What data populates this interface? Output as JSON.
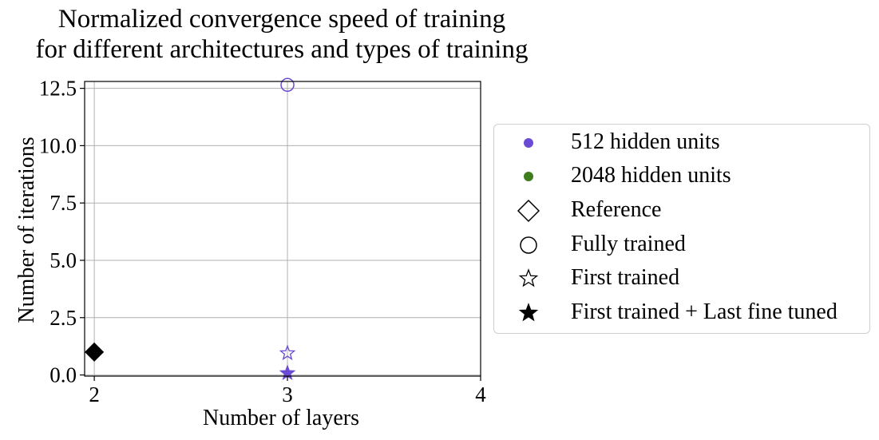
{
  "colors": {
    "series_512": "#6a4bd3",
    "series_2048": "#3d7d1d",
    "reference": "#000000",
    "grid": "#b0b0b0"
  },
  "chart_data": {
    "type": "scatter",
    "title_lines": [
      "Normalized convergence speed of training",
      "for different architectures and types of training"
    ],
    "xlabel": "Number of layers",
    "ylabel": "Number of iterations",
    "xlim": [
      1.95,
      4.0
    ],
    "ylim": [
      -0.05,
      12.8
    ],
    "xticks": [
      2,
      3,
      4
    ],
    "xtick_labels": [
      "2",
      "3",
      "4"
    ],
    "yticks": [
      0.0,
      2.5,
      5.0,
      7.5,
      10.0,
      12.5
    ],
    "ytick_labels": [
      "0.0",
      "2.5",
      "5.0",
      "7.5",
      "10.0",
      "12.5"
    ],
    "grid": true,
    "legend_position": "outside-right",
    "points": [
      {
        "x": 2,
        "y": 1.0,
        "marker": "diamond",
        "fill": "filled",
        "color": "#000000",
        "label": "Reference"
      },
      {
        "x": 3,
        "y": 12.65,
        "marker": "circle",
        "fill": "open",
        "color": "#6a4bd3",
        "label": "512 hidden units, Fully trained"
      },
      {
        "x": 3,
        "y": 0.95,
        "marker": "star",
        "fill": "open",
        "color": "#6a4bd3",
        "label": "512 hidden units, First trained"
      },
      {
        "x": 3,
        "y": 0.08,
        "marker": "star",
        "fill": "filled",
        "color": "#6a4bd3",
        "label": "512 hidden units, First trained + Last fine tuned"
      }
    ]
  },
  "legend": {
    "items": [
      {
        "label": "512 hidden units",
        "marker": "dot",
        "color": "#6a4bd3"
      },
      {
        "label": "2048 hidden units",
        "marker": "dot",
        "color": "#3d7d1d"
      },
      {
        "label": "Reference",
        "marker": "diamond-open",
        "color": "#000000"
      },
      {
        "label": "Fully trained",
        "marker": "circle-open",
        "color": "#000000"
      },
      {
        "label": "First trained",
        "marker": "star-open",
        "color": "#000000"
      },
      {
        "label": "First trained + Last fine tuned",
        "marker": "star-filled",
        "color": "#000000"
      }
    ]
  }
}
